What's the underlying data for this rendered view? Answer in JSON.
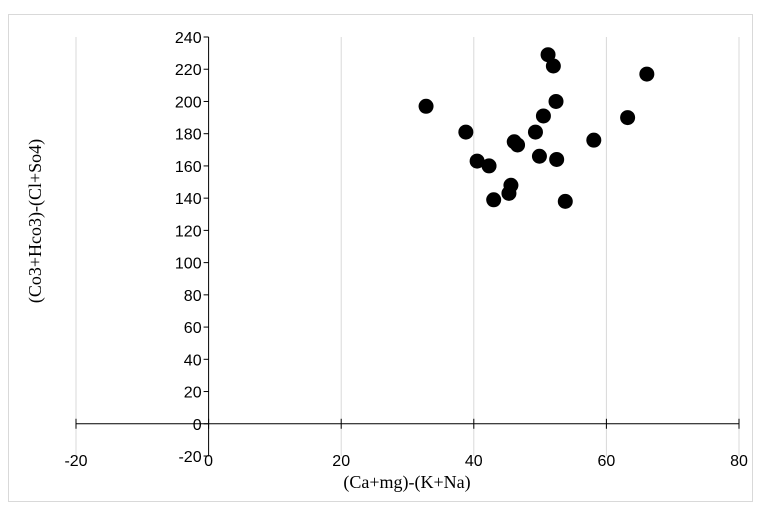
{
  "chart_data": {
    "type": "scatter",
    "title": "",
    "xlabel": "(Ca+mg)-(K+Na)",
    "ylabel": "(Co3+Hco3)-(Cl+So4)",
    "xlim": [
      -20,
      80
    ],
    "ylim": [
      -20,
      240
    ],
    "xticks": [
      -20,
      0,
      20,
      40,
      60,
      80
    ],
    "yticks": [
      -20,
      0,
      20,
      40,
      60,
      80,
      100,
      120,
      140,
      160,
      180,
      200,
      220,
      240
    ],
    "xtick_labels": [
      "-20",
      "0",
      "20",
      "40",
      "60",
      "80"
    ],
    "ytick_labels": [
      "-20",
      "0",
      "20",
      "40",
      "60",
      "80",
      "100",
      "120",
      "140",
      "160",
      "180",
      "200",
      "220",
      "240"
    ],
    "grid": "vertical",
    "legend": "none",
    "marker_color": "#000000",
    "series": [
      {
        "x": [
          32.8,
          38.8,
          40.5,
          42.3,
          43.0,
          45.3,
          45.6,
          46.1,
          46.6,
          49.3,
          49.9,
          50.5,
          51.2,
          52.0,
          52.4,
          52.5,
          53.8,
          58.1,
          63.2,
          66.1
        ],
        "y": [
          197,
          181,
          163,
          160,
          139,
          143,
          148,
          175,
          173,
          181,
          166,
          191,
          229,
          222,
          200,
          164,
          138,
          176,
          190,
          217
        ]
      }
    ]
  }
}
